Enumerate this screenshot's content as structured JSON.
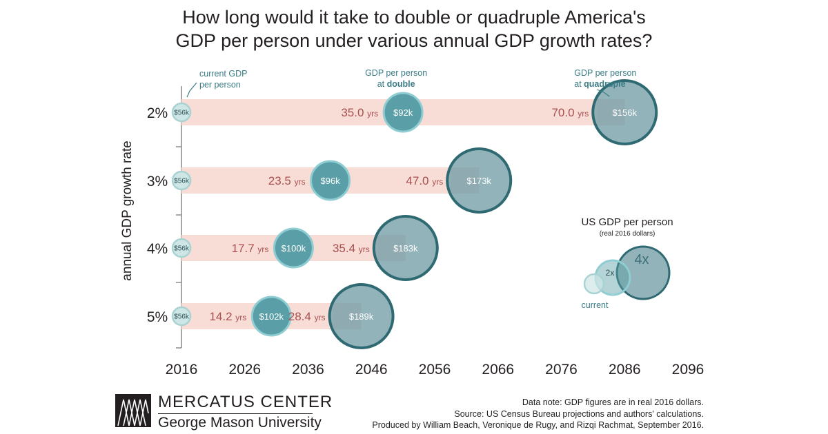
{
  "title_lines": [
    "How long would it take to double or quadruple America's",
    "GDP per person under various annual GDP growth rates?"
  ],
  "chart_data": {
    "type": "bubble-timeline",
    "ylabel": "annual GDP growth rate",
    "x_ticks": [
      "2016",
      "2026",
      "2036",
      "2046",
      "2056",
      "2066",
      "2076",
      "2086",
      "2096"
    ],
    "xlim": [
      2016,
      2096
    ],
    "base_year": 2016,
    "rows": [
      {
        "rate_label": "2%",
        "current": "$56k",
        "double_years": 35.0,
        "double_years_label": "35.0",
        "double_value": "$92k",
        "quad_years": 70.0,
        "quad_years_label": "70.0",
        "quad_value": "$156k"
      },
      {
        "rate_label": "3%",
        "current": "$56k",
        "double_years": 23.5,
        "double_years_label": "23.5",
        "double_value": "$96k",
        "quad_years": 47.0,
        "quad_years_label": "47.0",
        "quad_value": "$173k"
      },
      {
        "rate_label": "4%",
        "current": "$56k",
        "double_years": 17.7,
        "double_years_label": "17.7",
        "double_value": "$100k",
        "quad_years": 35.4,
        "quad_years_label": "35.4",
        "quad_value": "$183k"
      },
      {
        "rate_label": "5%",
        "current": "$56k",
        "double_years": 14.2,
        "double_years_label": "14.2",
        "double_value": "$102k",
        "quad_years": 28.4,
        "quad_years_label": "28.4",
        "quad_value": "$189k"
      }
    ],
    "years_unit": "yrs",
    "annotations": {
      "current": [
        "current GDP",
        "per person"
      ],
      "double": [
        "GDP per person",
        "at ",
        "double"
      ],
      "quadruple": [
        "GDP per person",
        "at ",
        "quadruple"
      ]
    },
    "legend": {
      "title": "US GDP per person",
      "subtitle": "(real 2016 dollars)",
      "current": "current",
      "double": "2x",
      "quadruple": "4x"
    },
    "colors": {
      "current_fill": "#cfe6e6",
      "current_stroke": "#a9d3d3",
      "double_fill": "#5a9fa7",
      "double_stroke": "#8fcdd3",
      "quad_fill": "#7fa6ad",
      "quad_stroke": "#2f6a73",
      "band": "#f8dcd6",
      "band_dark": "#e8c3bf",
      "years_text": "#a8504f",
      "teal_text": "#3a7d86",
      "axis": "#8a8a8a"
    }
  },
  "footer": {
    "logo_name": "MERCATUS CENTER",
    "logo_sub": "George Mason University",
    "notes": [
      "Data note: GDP figures are in real 2016 dollars.",
      "Source: US Census Bureau projections and authors' calculations.",
      "Produced by William Beach, Veronique de Rugy, and Rizqi Rachmat, September 2016."
    ]
  }
}
